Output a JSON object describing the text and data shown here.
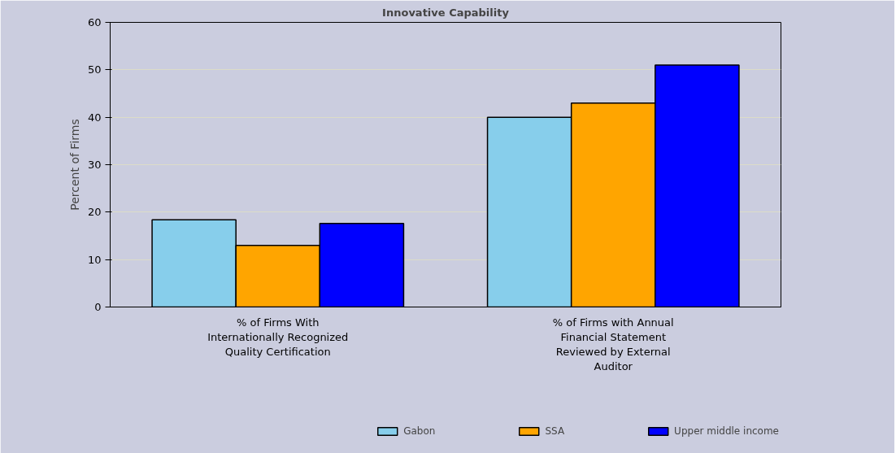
{
  "chart_data": {
    "type": "bar",
    "title": "Innovative Capability",
    "ylabel": "Percent of Firms",
    "categories": [
      "% of Firms With\nInternationally Recognized\nQuality Certification",
      "% of Firms with Annual\nFinancial Statement\nReviewed by External\nAuditor"
    ],
    "series": [
      {
        "name": "Gabon",
        "color": "#87ceeb",
        "values": [
          18.4,
          40
        ]
      },
      {
        "name": "SSA",
        "color": "#ffa500",
        "values": [
          13,
          43
        ]
      },
      {
        "name": "Upper middle income",
        "color": "#0000ff",
        "values": [
          17.6,
          51
        ]
      }
    ],
    "ylim": [
      0,
      60
    ],
    "yticks": [
      0,
      10,
      20,
      30,
      40,
      50,
      60
    ],
    "grid": "y",
    "legend": "bottom"
  }
}
